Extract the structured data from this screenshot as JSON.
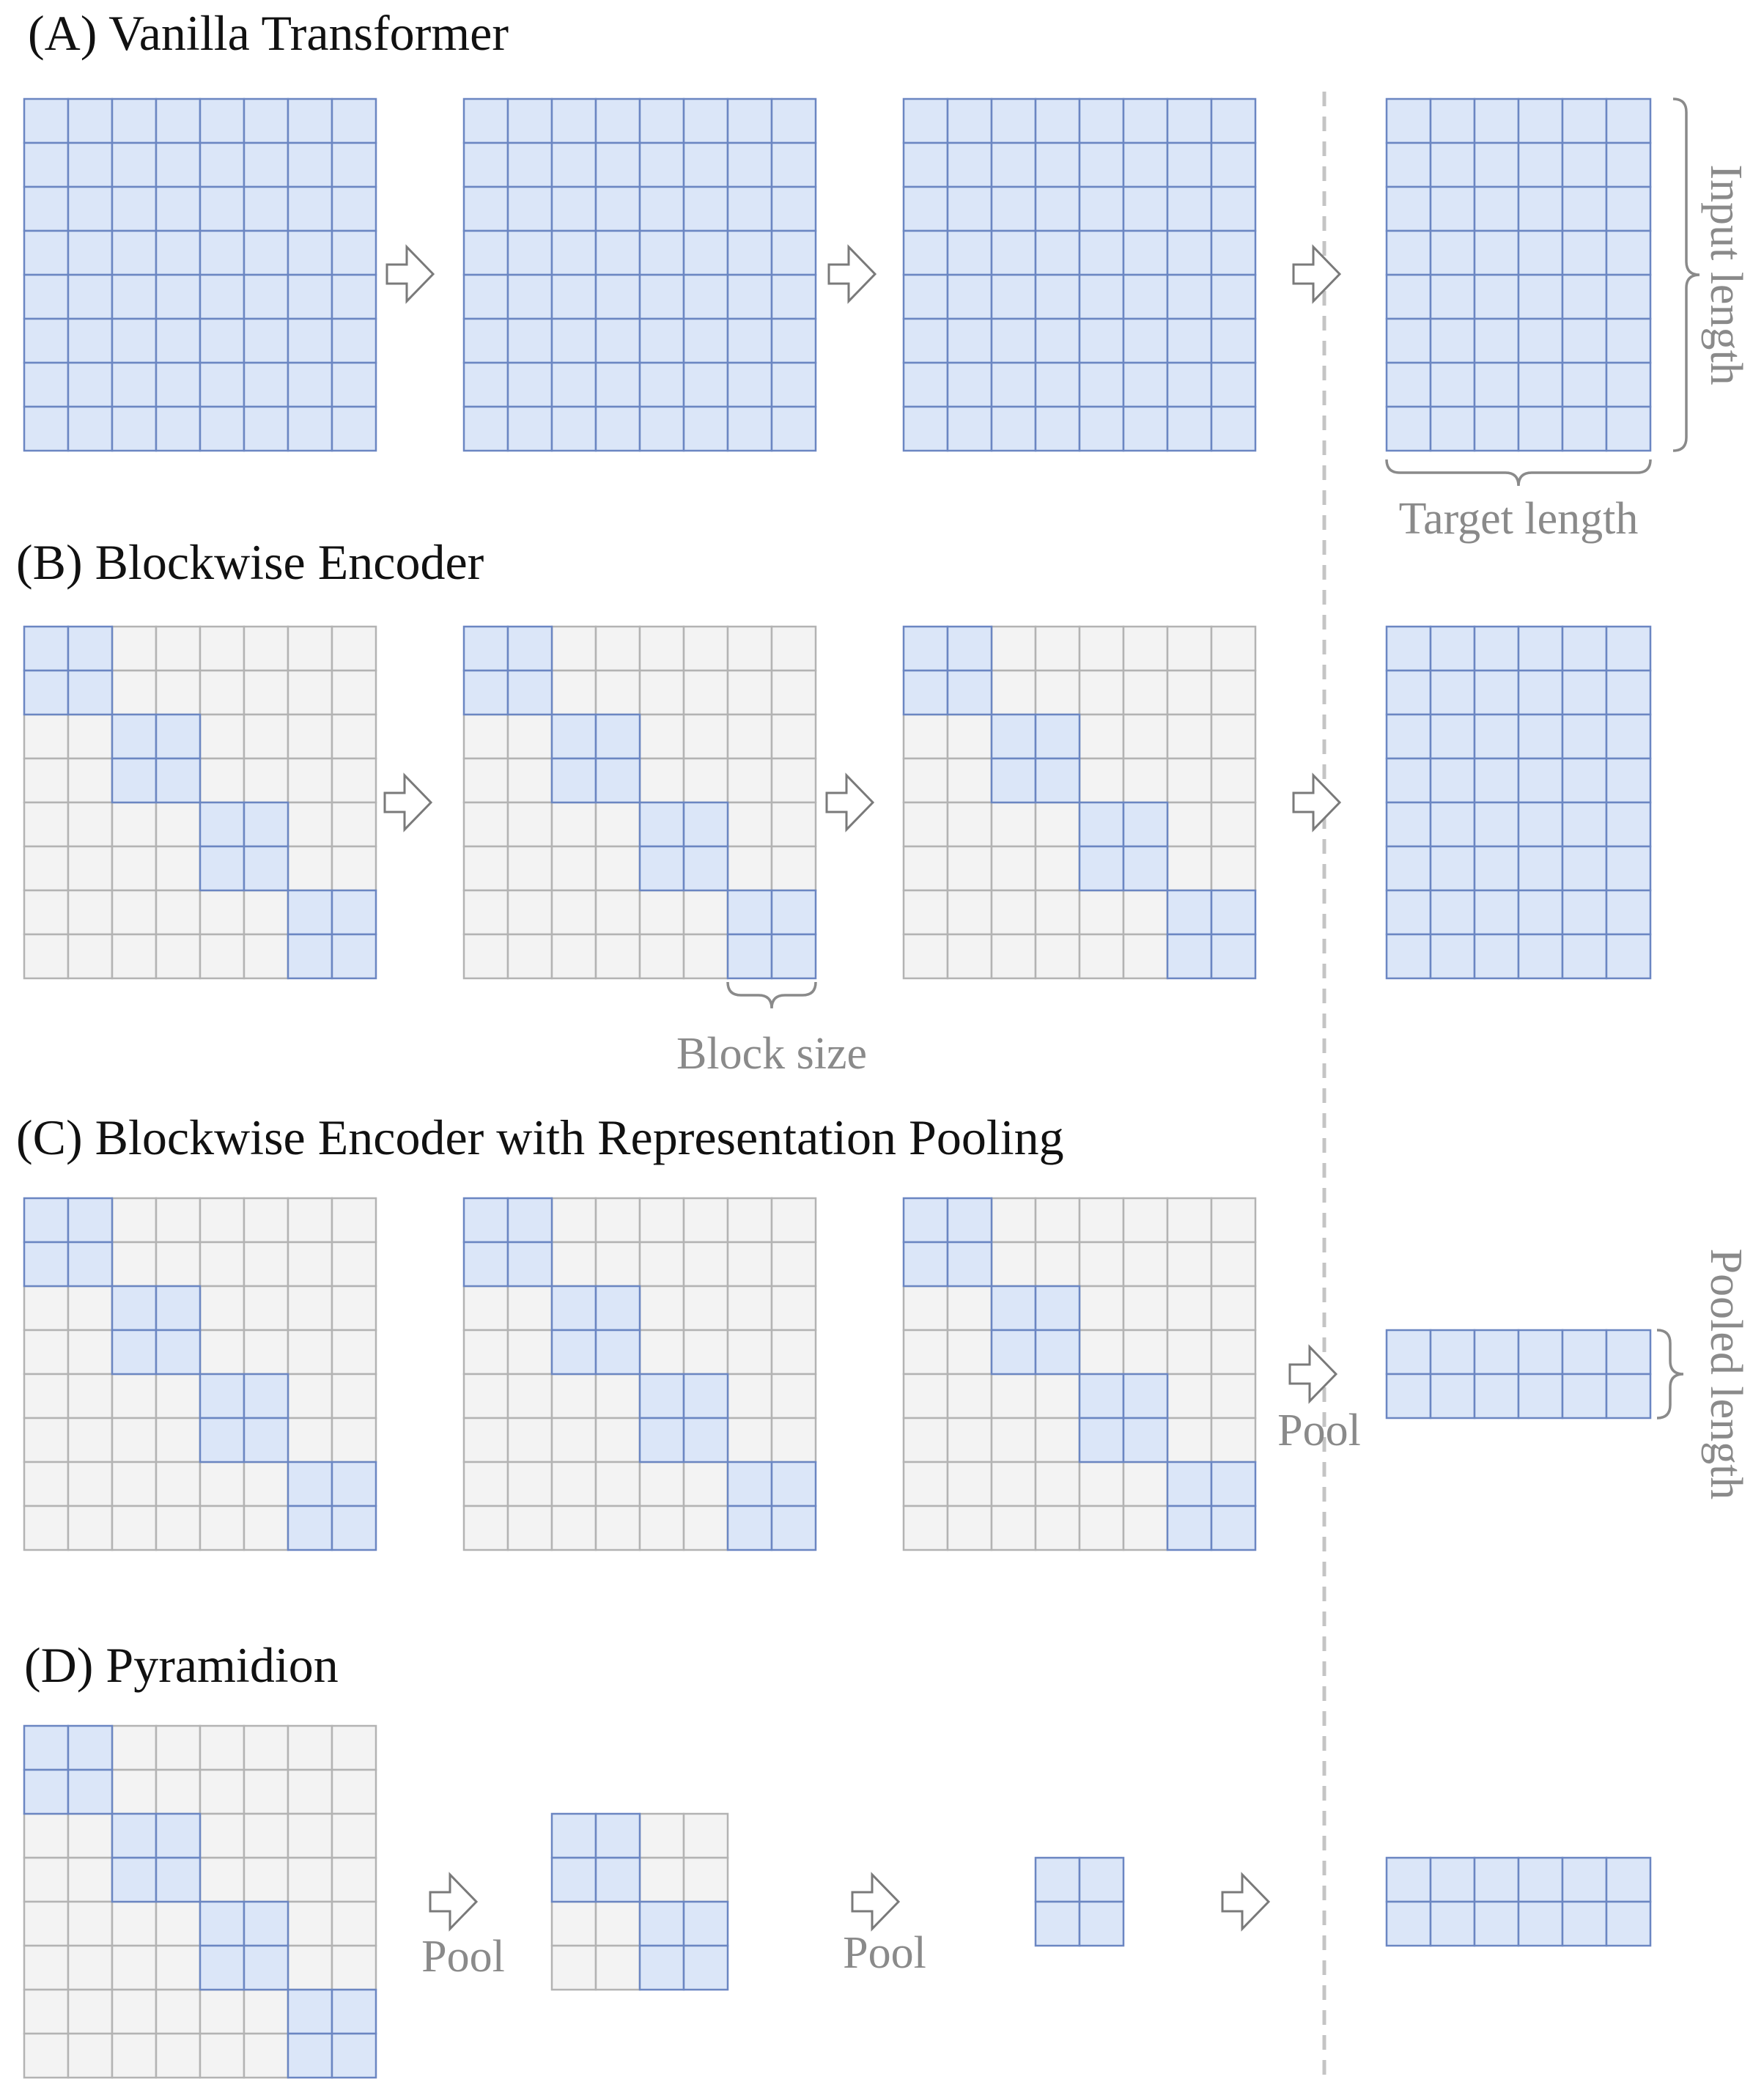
{
  "colors": {
    "active_fill": "#dbe6f8",
    "active_stroke": "#6b86c2",
    "inactive_fill": "#f3f3f3",
    "inactive_stroke": "#b3b3b3",
    "annotation": "#8a8a8a",
    "divider": "#c4c4c4"
  },
  "sections": {
    "a": {
      "title": "(A) Vanilla Transformer"
    },
    "b": {
      "title": "(B) Blockwise Encoder"
    },
    "c": {
      "title": "(C) Blockwise Encoder with Representation Pooling"
    },
    "d": {
      "title": "(D) Pyramidion"
    }
  },
  "annotations": {
    "input_length": "Input length",
    "target_length": "Target length",
    "block_size": "Block size",
    "pooled_length": "Pooled length",
    "pool_c": "Pool",
    "pool_d1": "Pool",
    "pool_d2": "Pool"
  }
}
